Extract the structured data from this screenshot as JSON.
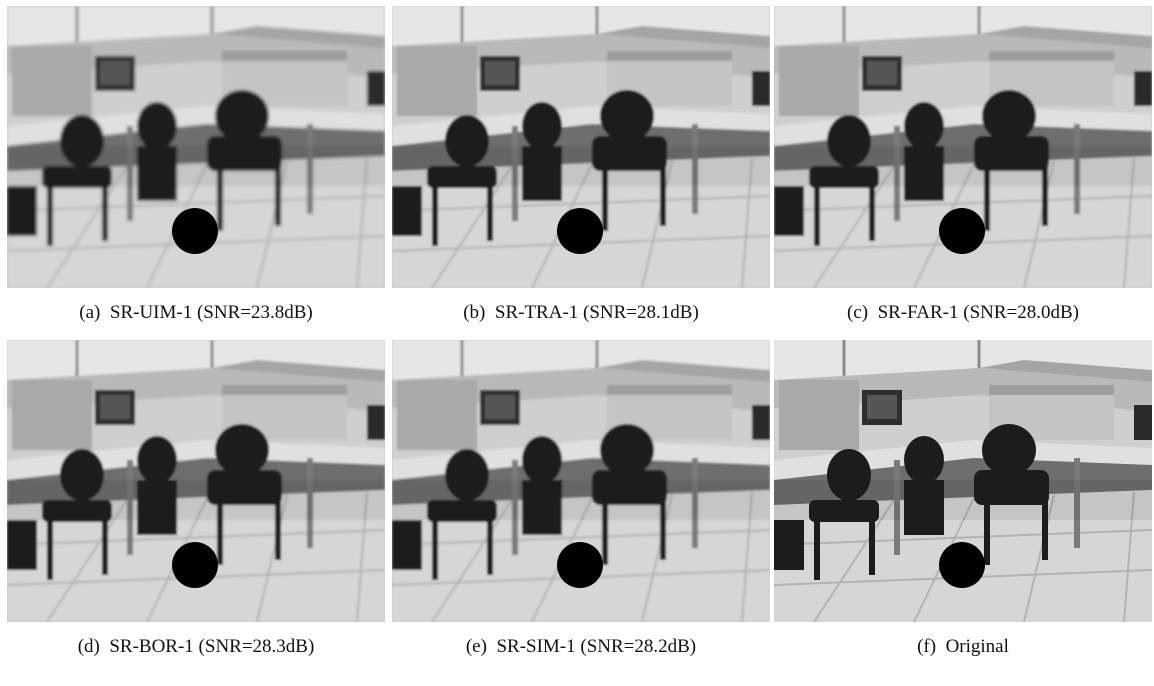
{
  "panels": [
    {
      "label": "(a)",
      "caption": "SR-UIM-1 (SNR=23.8dB)",
      "blur": 1.6
    },
    {
      "label": "(b)",
      "caption": "SR-TRA-1 (SNR=28.1dB)",
      "blur": 1.0
    },
    {
      "label": "(c)",
      "caption": "SR-FAR-1 (SNR=28.0dB)",
      "blur": 1.0
    },
    {
      "label": "(d)",
      "caption": "SR-BOR-1 (SNR=28.3dB)",
      "blur": 1.0
    },
    {
      "label": "(e)",
      "caption": "SR-SIM-1 (SNR=28.2dB)",
      "blur": 1.0
    },
    {
      "label": "(f)",
      "caption": "Original",
      "blur": 0.3
    }
  ]
}
